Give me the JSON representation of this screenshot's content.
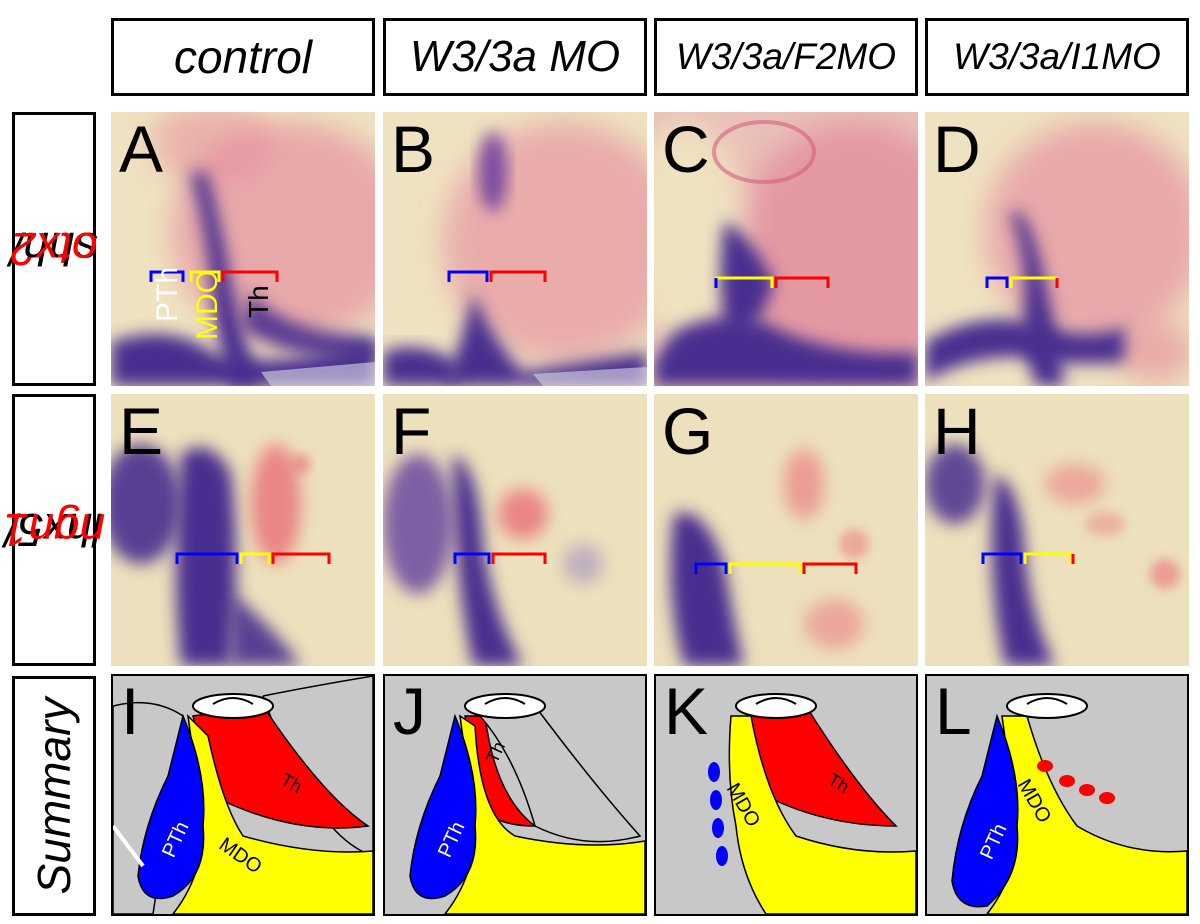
{
  "headers": [
    "control",
    "W3/3a MO",
    "W3/3a/F2MO",
    "W3/3a/I1MO"
  ],
  "row_labels": {
    "row1_a": "shh/",
    "row1_b": "otx2",
    "row2_a": "lhx5/",
    "row2_b": "ngn1",
    "row3": "Summary"
  },
  "panel_letters": [
    "A",
    "B",
    "C",
    "D",
    "E",
    "F",
    "G",
    "H",
    "I",
    "J",
    "K",
    "L"
  ],
  "panel_a_labels": {
    "pth": "PTh",
    "mdo": "MDO",
    "th": "Th"
  },
  "summary_labels": {
    "i": {
      "pth": "PTh",
      "th": "Th",
      "mdo": "MDO"
    },
    "j": {
      "pth": "PTh",
      "th": "Th"
    },
    "k": {
      "mdo": "MDO",
      "th": "Th"
    },
    "l": {
      "pth": "PTh",
      "mdo": "MDO"
    }
  },
  "colors": {
    "pth_blue": "#0000ff",
    "mdo_yellow": "#ffff00",
    "th_red": "#ff0000",
    "background_gray": "#c8c8c8",
    "stain_purple": "#4a2f8f",
    "stain_red": "#e8506a",
    "tissue": "#f2e6c4"
  }
}
